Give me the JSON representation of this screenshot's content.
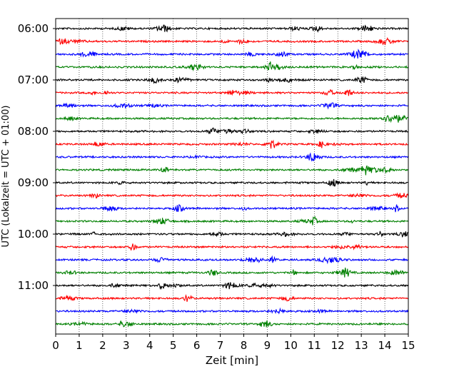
{
  "chart_data": {
    "type": "line",
    "title": "",
    "xlabel": "Zeit  [min]",
    "ylabel": "UTC (Lokalzeit = UTC + 01:00)",
    "xlim": [
      0,
      15
    ],
    "x_ticks": [
      0,
      1,
      2,
      3,
      4,
      5,
      6,
      7,
      8,
      9,
      10,
      11,
      12,
      13,
      14,
      15
    ],
    "x_tick_labels": [
      "0",
      "1",
      "2",
      "3",
      "4",
      "5",
      "6",
      "7",
      "8",
      "9",
      "10",
      "11",
      "12",
      "13",
      "14",
      "15"
    ],
    "y_tick_labels": [
      "06:00",
      "07:00",
      "08:00",
      "09:00",
      "10:00",
      "11:00"
    ],
    "trace_interval_min": 15,
    "trace_start_utc": "06:00",
    "trace_count": 24,
    "trace_colors": [
      "#000000",
      "#ff0000",
      "#0000ff",
      "#008000"
    ],
    "grid": {
      "x": "dotted vertical lines at each minute"
    },
    "legend": "none"
  }
}
